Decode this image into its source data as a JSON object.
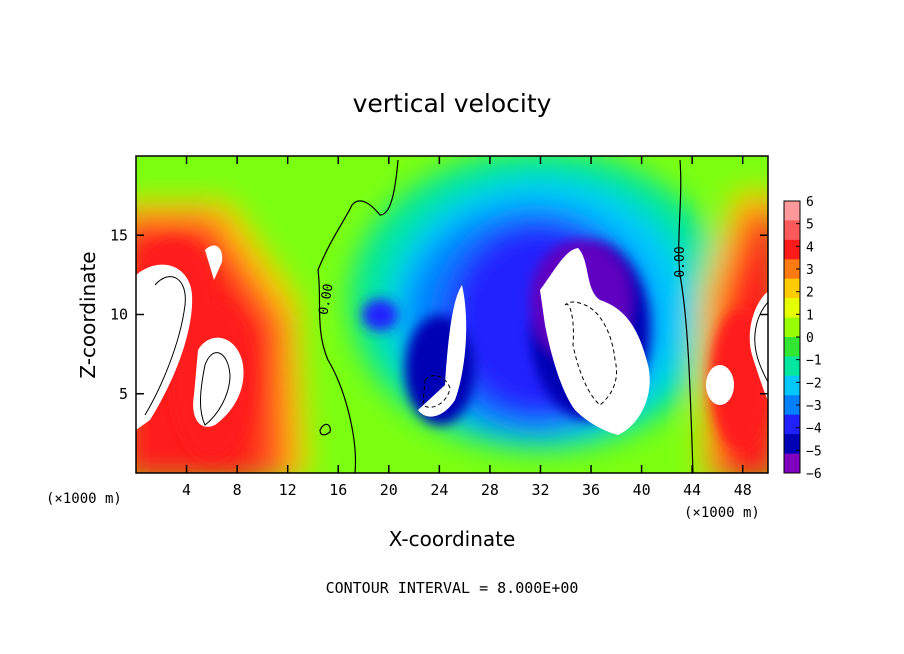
{
  "chart_data": {
    "type": "heatmap",
    "title": "vertical velocity",
    "xlabel": "X-coordinate",
    "ylabel": "Z-coordinate",
    "x_unit_left": "(×1000 m)",
    "x_unit_right": "(×1000 m)",
    "xlim": [
      0,
      50
    ],
    "ylim": [
      0,
      20
    ],
    "x_ticks": [
      4,
      8,
      12,
      16,
      20,
      24,
      28,
      32,
      36,
      40,
      44,
      48
    ],
    "y_ticks": [
      5,
      10,
      15
    ],
    "colorbar": {
      "ticks": [
        6,
        5,
        4,
        3,
        2,
        1,
        0,
        -1,
        -2,
        -3,
        -4,
        -5,
        -6
      ],
      "tick_labels": [
        "6",
        "5",
        "4",
        "3",
        "2",
        "1",
        "0",
        "−1",
        "−2",
        "−3",
        "−4",
        "−5",
        "−6"
      ],
      "colors": [
        "#ff9898",
        "#ff5a5a",
        "#ff1a1a",
        "#ff7a10",
        "#ffcc00",
        "#e6ff00",
        "#99ff00",
        "#33e633",
        "#00e6a0",
        "#00c8ff",
        "#0080ff",
        "#2020ff",
        "#0000b4",
        "#8000c0"
      ]
    },
    "contour_labels": [
      "0.00",
      "0.00"
    ],
    "contour_interval_note": "CONTOUR INTERVAL = 8.000E+00",
    "features": [
      {
        "kind": "updraft-core",
        "x": [
          0,
          4
        ],
        "z": [
          4,
          13
        ],
        "value": "> 6"
      },
      {
        "kind": "updraft-core",
        "x": [
          3,
          9
        ],
        "z": [
          1,
          12
        ],
        "value": "> 6"
      },
      {
        "kind": "downdraft-core",
        "x": [
          24,
          27
        ],
        "z": [
          3,
          12
        ],
        "value": "< -6"
      },
      {
        "kind": "downdraft-core",
        "x": [
          32,
          40
        ],
        "z": [
          2,
          14
        ],
        "value": "< -6"
      },
      {
        "kind": "updraft-core",
        "x": [
          45,
          50
        ],
        "z": [
          3,
          12
        ],
        "value": "> 6"
      }
    ]
  }
}
